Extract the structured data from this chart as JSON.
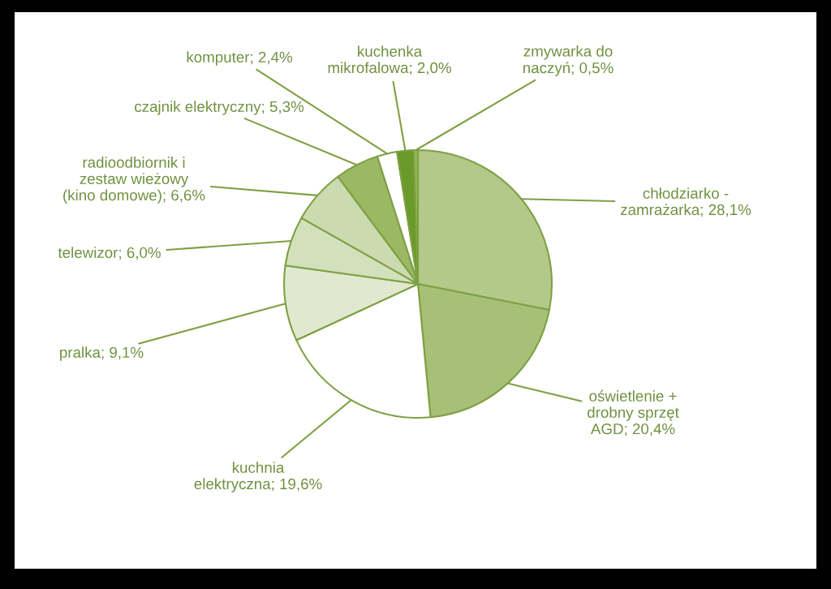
{
  "chart_data": {
    "type": "pie",
    "categories": [
      "chłodziarko -\nzamrażarka",
      "oświetlenie +\ndrobny sprzęt\nAGD",
      "kuchnia\nelektryczna",
      "pralka",
      "telewizor",
      "radioodbiornik i\nzestaw wieżowy\n(kino domowe)",
      "czajnik elektryczny",
      "komputer",
      "kuchenka\nmikrofalowa",
      "zmywarka do\nnaczyń"
    ],
    "values": [
      28.1,
      20.4,
      19.6,
      9.1,
      6.0,
      6.6,
      5.3,
      2.4,
      2.0,
      0.5
    ],
    "value_labels": [
      "28,1%",
      "20,4%",
      "19,6%",
      "9,1%",
      "6,0%",
      "6,6%",
      "5,3%",
      "2,4%",
      "2,0%",
      "0,5%"
    ],
    "colors": [
      "#b3c98a",
      "#a7c078",
      "#ffffff",
      "#e0e9cf",
      "#d3e0bc",
      "#ccdab0",
      "#9bb963",
      "#ffffff",
      "#6a9a2a",
      "#98b860"
    ]
  }
}
